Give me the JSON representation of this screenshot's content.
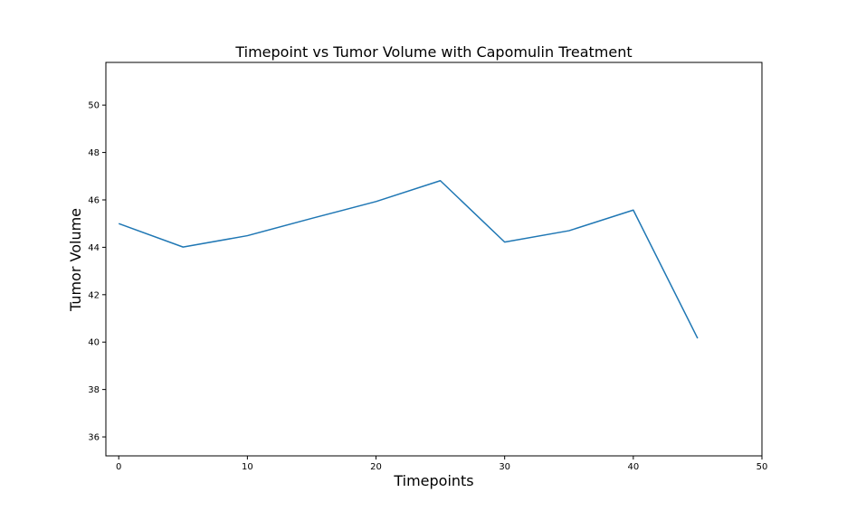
{
  "chart_data": {
    "type": "line",
    "title": "Timepoint vs Tumor Volume with Capomulin Treatment",
    "xlabel": "Timepoints",
    "ylabel": "Tumor Volume",
    "xlim": [
      -1,
      50
    ],
    "ylim": [
      35.2,
      51.8
    ],
    "xticks": [
      0,
      10,
      20,
      30,
      40,
      50
    ],
    "yticks": [
      36,
      38,
      40,
      42,
      44,
      46,
      48,
      50
    ],
    "grid": false,
    "legend": "none",
    "line_color": "#1f77b4",
    "x": [
      0,
      5,
      10,
      15,
      20,
      25,
      30,
      35,
      40,
      45
    ],
    "series": [
      {
        "values": [
          45.0,
          44.01,
          44.49,
          45.22,
          45.93,
          46.81,
          44.22,
          44.7,
          45.57,
          40.16
        ]
      }
    ]
  }
}
